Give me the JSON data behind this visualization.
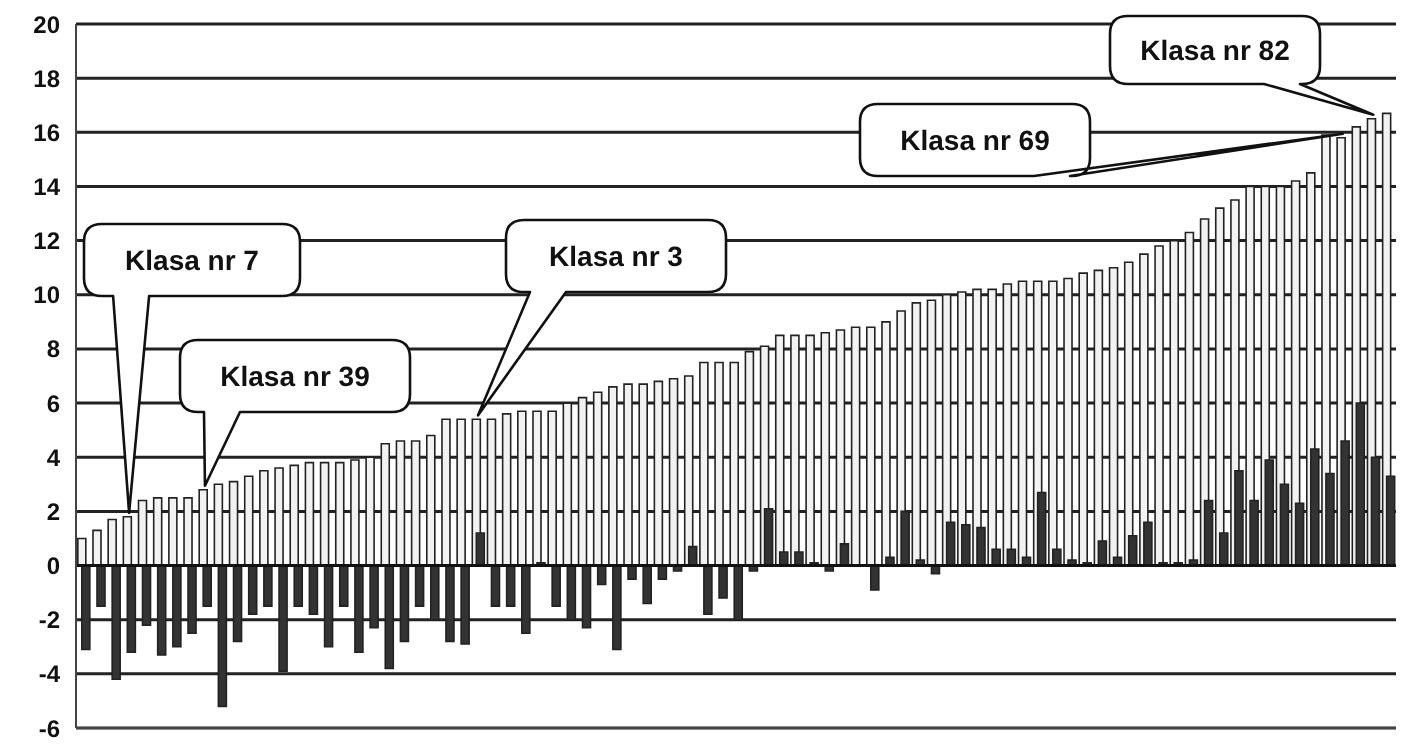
{
  "chart_data": {
    "type": "bar",
    "categories": [
      null,
      null,
      null,
      null,
      null,
      null,
      null,
      null,
      null,
      null,
      null,
      null,
      null,
      null,
      null,
      null,
      null,
      null,
      null,
      null,
      null,
      null,
      null,
      null,
      null,
      null,
      null,
      null,
      null,
      null,
      null,
      null,
      null,
      null,
      null,
      null,
      null,
      null,
      null,
      null,
      null,
      null,
      null,
      null,
      null,
      null,
      null,
      null,
      null,
      null,
      null,
      null,
      null,
      null,
      null,
      null,
      null,
      null,
      null,
      null,
      null,
      null,
      null,
      null,
      null,
      null,
      null,
      null,
      null,
      null,
      null,
      null,
      null,
      null,
      null,
      null,
      null,
      null,
      null,
      null,
      null,
      null,
      null,
      null,
      null,
      null,
      null
    ],
    "series": [
      {
        "color": "#f2f2f2",
        "values": [
          1.0,
          1.3,
          1.7,
          1.8,
          2.4,
          2.5,
          2.5,
          2.5,
          2.8,
          3.0,
          3.1,
          3.3,
          3.5,
          3.6,
          3.7,
          3.8,
          3.8,
          3.8,
          3.9,
          4.0,
          4.5,
          4.6,
          4.6,
          4.8,
          5.4,
          5.4,
          5.4,
          5.4,
          5.6,
          5.7,
          5.7,
          5.7,
          6.0,
          6.2,
          6.4,
          6.6,
          6.7,
          6.7,
          6.8,
          6.9,
          7.0,
          7.5,
          7.5,
          7.5,
          7.9,
          8.1,
          8.5,
          8.5,
          8.5,
          8.6,
          8.7,
          8.8,
          8.8,
          9.0,
          9.4,
          9.7,
          9.8,
          10,
          10.1,
          10.2,
          10.2,
          10.4,
          10.5,
          10.5,
          10.5,
          10.6,
          10.8,
          10.9,
          11.0,
          11.2,
          11.5,
          11.8,
          12.0,
          12.3,
          12.8,
          13.2,
          13.5,
          14.0,
          14.0,
          14.0,
          14.2,
          14.5,
          15.9,
          15.8,
          16.2,
          16.5,
          16.7
        ]
      },
      {
        "color": "#333333",
        "values": [
          -3.1,
          -1.5,
          -4.2,
          -3.2,
          -2.2,
          -3.3,
          -3.0,
          -2.5,
          -1.5,
          -5.2,
          -2.8,
          -1.8,
          -1.5,
          -3.9,
          -1.5,
          -1.8,
          -3.0,
          -1.5,
          -3.2,
          -2.3,
          -3.8,
          -2.8,
          -1.5,
          -2.0,
          -2.8,
          -2.9,
          1.2,
          -1.5,
          -1.5,
          -2.5,
          0.1,
          -1.5,
          -2.0,
          -2.3,
          -0.7,
          -3.1,
          -0.5,
          -1.4,
          -0.5,
          -0.2,
          0.7,
          -1.8,
          -1.2,
          -2.0,
          -0.2,
          2.1,
          0.5,
          0.5,
          0.1,
          -0.2,
          0.8,
          null,
          -0.9,
          0.3,
          2.0,
          0.2,
          -0.3,
          1.6,
          1.5,
          1.4,
          0.6,
          0.6,
          0.3,
          2.7,
          0.6,
          0.2,
          0.1,
          0.9,
          0.3,
          1.1,
          1.6,
          0.1,
          0.1,
          0.2,
          2.4,
          1.2,
          3.5,
          2.4,
          3.9,
          3.0,
          2.3,
          4.3,
          3.4,
          4.6,
          6.0,
          4.0,
          3.3
        ]
      }
    ],
    "ylim": [
      -6,
      20
    ],
    "yticks": [
      -6,
      -4,
      -2,
      0,
      2,
      4,
      6,
      8,
      10,
      12,
      14,
      16,
      18,
      20
    ],
    "grid": "y",
    "legend": false,
    "annotations": [
      "Klasa nr 7",
      "Klasa nr 39",
      "Klasa nr 3",
      "Klasa nr 69",
      "Klasa nr 82"
    ]
  }
}
